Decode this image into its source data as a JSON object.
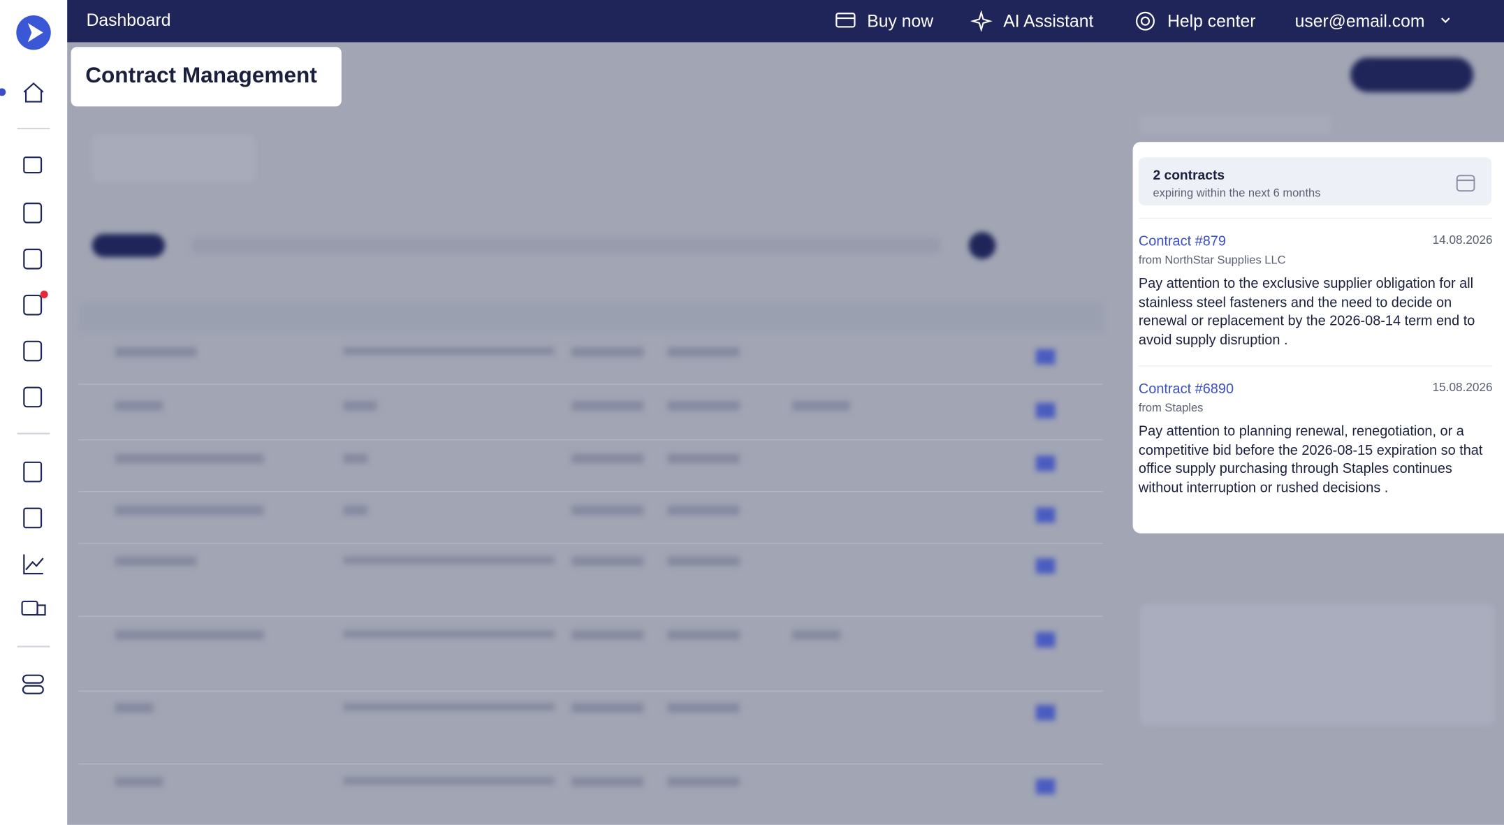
{
  "header": {
    "title": "Dashboard",
    "nav": [
      "Buy now",
      "AI Assistant",
      "Help center"
    ],
    "user": "user@email.com"
  },
  "page_title": "Contract Management",
  "panel": {
    "summary": {
      "count": "2 contracts",
      "subtitle": "expiring within the next 6 months"
    },
    "contracts": [
      {
        "title": "Contract #879",
        "date": "14.08.2026",
        "supplier": "from NorthStar Supplies LLC",
        "note": "Pay attention to the exclusive supplier obligation for all stainless steel fasteners and the need to decide on renewal or replacement by the 2026-08-14 term end to avoid supply disruption ."
      },
      {
        "title": "Contract #6890",
        "date": "15.08.2026",
        "supplier": "from Staples",
        "note": "Pay attention to planning renewal, renegotiation, or a competitive bid before the 2026-08-15 expiration so that office supply purchasing through Staples continues without interruption or rushed decisions ."
      }
    ]
  }
}
